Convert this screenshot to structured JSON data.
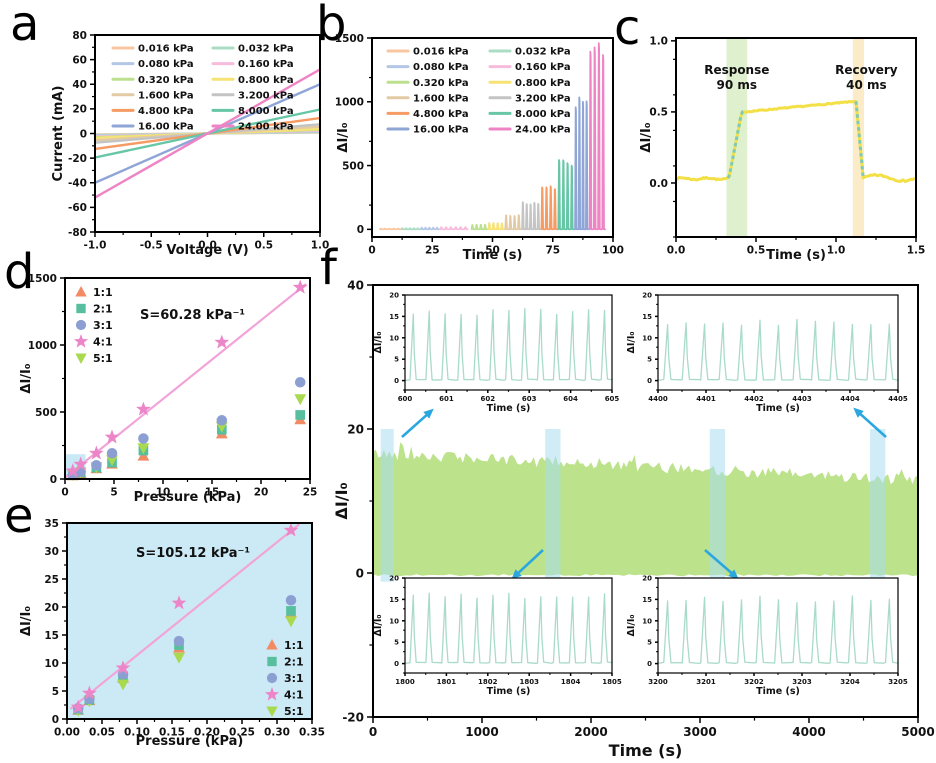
{
  "figure": {
    "background": "#ffffff"
  },
  "chart_data": [
    {
      "id": "a",
      "panel_label": "a",
      "type": "line",
      "xlabel": "Voltage (V)",
      "ylabel": "Current (mA)",
      "xlim": [
        -1,
        1
      ],
      "ylim": [
        -80,
        80
      ],
      "xticks": [
        -1,
        -0.5,
        0,
        0.5,
        1
      ],
      "xtick_labels": [
        "-1.0",
        "-0.5",
        "0.0",
        "0.5",
        "1.0"
      ],
      "yticks": [
        -80,
        -60,
        -40,
        -20,
        0,
        20,
        40,
        60,
        80
      ],
      "ytick_labels": [
        "-80",
        "-60",
        "-40",
        "-20",
        "0",
        "20",
        "40",
        "60",
        "80"
      ],
      "x_minor_step": 0.25,
      "y_minor_step": 10,
      "series": [
        {
          "name": "0.016 kPa",
          "color": "#F8C7A2",
          "slope_mA_per_V": 0.8
        },
        {
          "name": "0.032 kPa",
          "color": "#ABDCC4",
          "slope_mA_per_V": 1.2
        },
        {
          "name": "0.080 kPa",
          "color": "#B5C7E6",
          "slope_mA_per_V": 1.8
        },
        {
          "name": "0.160 kPa",
          "color": "#F7BCDC",
          "slope_mA_per_V": 2.3
        },
        {
          "name": "0.320 kPa",
          "color": "#BCE08E",
          "slope_mA_per_V": 3.0
        },
        {
          "name": "0.800 kPa",
          "color": "#F6E275",
          "slope_mA_per_V": 3.6
        },
        {
          "name": "1.600 kPa",
          "color": "#E2CBA4",
          "slope_mA_per_V": 5.5
        },
        {
          "name": "3.200 kPa",
          "color": "#C4C4C4",
          "slope_mA_per_V": 7.5
        },
        {
          "name": "4.800 kPa",
          "color": "#F59B63",
          "slope_mA_per_V": 12.5
        },
        {
          "name": "8.000 kPa",
          "color": "#66C6A5",
          "slope_mA_per_V": 19.5
        },
        {
          "name": "16.00 kPa",
          "color": "#8FA5D6",
          "slope_mA_per_V": 40
        },
        {
          "name": "24.00 kPa",
          "color": "#EE84C4",
          "slope_mA_per_V": 52
        }
      ],
      "legend": {
        "columns": 2,
        "position": "top-left"
      }
    },
    {
      "id": "b",
      "panel_label": "b",
      "type": "line",
      "xlabel": "Time (s)",
      "ylabel": "ΔI/I₀",
      "xlim": [
        0,
        100
      ],
      "ylim": [
        -60,
        1500
      ],
      "xticks": [
        0,
        25,
        50,
        75,
        100
      ],
      "xtick_labels": [
        "0",
        "25",
        "50",
        "75",
        "100"
      ],
      "yticks": [
        0,
        500,
        1000,
        1500
      ],
      "ytick_labels": [
        "0",
        "500",
        "1000",
        "1500"
      ],
      "x_minor_step": 12.5,
      "y_minor_step": 250,
      "pulse_groups": [
        {
          "name": "0.016 kPa",
          "color": "#F8C7A2",
          "t_start": 3,
          "t_end": 12,
          "amplitude": 6,
          "pulses": 5
        },
        {
          "name": "0.032 kPa",
          "color": "#ABDCC4",
          "t_start": 12,
          "t_end": 20,
          "amplitude": 9,
          "pulses": 5
        },
        {
          "name": "0.080 kPa",
          "color": "#B5C7E6",
          "t_start": 20,
          "t_end": 28,
          "amplitude": 13,
          "pulses": 5
        },
        {
          "name": "0.160 kPa",
          "color": "#F7BCDC",
          "t_start": 28,
          "t_end": 40,
          "amplitude": 17,
          "pulses": 6
        },
        {
          "name": "0.320 kPa",
          "color": "#BCE08E",
          "t_start": 41,
          "t_end": 48,
          "amplitude": 36,
          "pulses": 4
        },
        {
          "name": "0.800 kPa",
          "color": "#F6E275",
          "t_start": 48,
          "t_end": 55,
          "amplitude": 48,
          "pulses": 4
        },
        {
          "name": "1.600 kPa",
          "color": "#E2CBA4",
          "t_start": 55,
          "t_end": 62,
          "amplitude": 110,
          "pulses": 4
        },
        {
          "name": "3.200 kPa",
          "color": "#C4C4C4",
          "t_start": 62,
          "t_end": 70,
          "amplitude": 205,
          "pulses": 5
        },
        {
          "name": "4.800 kPa",
          "color": "#F59B63",
          "t_start": 70,
          "t_end": 77,
          "amplitude": 330,
          "pulses": 4
        },
        {
          "name": "8.000 kPa",
          "color": "#66C6A5",
          "t_start": 77,
          "t_end": 84,
          "amplitude": 530,
          "pulses": 4
        },
        {
          "name": "16.00 kPa",
          "color": "#8FA5D6",
          "t_start": 84,
          "t_end": 90,
          "amplitude": 1010,
          "pulses": 4
        },
        {
          "name": "24.00 kPa",
          "color": "#EE84C4",
          "t_start": 90,
          "t_end": 97,
          "amplitude": 1440,
          "pulses": 4
        }
      ],
      "legend": {
        "columns": 2,
        "position": "top-left"
      }
    },
    {
      "id": "c",
      "panel_label": "c",
      "type": "line",
      "xlabel": "Time (s)",
      "ylabel": "ΔI/I₀",
      "xlim": [
        0,
        1.5
      ],
      "ylim": [
        -0.38,
        1.02
      ],
      "xticks": [
        0,
        0.5,
        1,
        1.5
      ],
      "xtick_labels": [
        "0.0",
        "0.5",
        "1.0",
        "1.5"
      ],
      "yticks": [
        0,
        0.5,
        1
      ],
      "ytick_labels": [
        "0.0",
        "0.5",
        "1.0"
      ],
      "x_minor_step": 0.25,
      "y_minor_step": 0.25,
      "trace": {
        "color": "#F2E046",
        "dash_color": "#7ECBB5",
        "baseline": 0.03,
        "rise_start": 0.33,
        "rise_end": 0.425,
        "plateau_start_value": 0.5,
        "plateau_end_value": 0.575,
        "fall_start": 1.125,
        "fall_end": 1.17,
        "end_value": 0.035
      },
      "bands": [
        {
          "label": "Response",
          "value": "90 ms",
          "x_start": 0.315,
          "x_end": 0.445,
          "color": "#DFF0CE",
          "label_x": 0.38
        },
        {
          "label": "Recovery",
          "value": "40 ms",
          "x_start": 1.105,
          "x_end": 1.175,
          "color": "#FBEBC8",
          "label_x": 1.19
        }
      ]
    },
    {
      "id": "d",
      "panel_label": "d",
      "type": "scatter",
      "xlabel": "Pressure (kPa)",
      "ylabel": "ΔI/I₀",
      "xlim": [
        0,
        25
      ],
      "ylim": [
        0,
        1500
      ],
      "xticks": [
        0,
        5,
        10,
        15,
        20,
        25
      ],
      "xtick_labels": [
        "0",
        "5",
        "10",
        "15",
        "20",
        "25"
      ],
      "yticks": [
        0,
        500,
        1000,
        1500
      ],
      "ytick_labels": [
        "0",
        "500",
        "1000",
        "1500"
      ],
      "x_minor_step": 2.5,
      "y_minor_step": 250,
      "pressures": [
        0.8,
        1.6,
        3.2,
        4.8,
        8,
        16,
        24
      ],
      "series": [
        {
          "name": "1:1",
          "marker": "triangle-up",
          "color": "#F28B64",
          "values": [
            25,
            42,
            78,
            112,
            172,
            338,
            443
          ]
        },
        {
          "name": "2:1",
          "marker": "square",
          "color": "#57BF9E",
          "values": [
            28,
            48,
            85,
            122,
            212,
            368,
            478
          ]
        },
        {
          "name": "3:1",
          "marker": "circle",
          "color": "#8C9FD3",
          "values": [
            32,
            55,
            102,
            192,
            302,
            438,
            722
          ]
        },
        {
          "name": "4:1",
          "marker": "star",
          "color": "#EC86C8",
          "values": [
            60,
            110,
            192,
            312,
            520,
            1020,
            1430
          ]
        },
        {
          "name": "5:1",
          "marker": "triangle-down",
          "color": "#A9D94E",
          "values": [
            30,
            50,
            90,
            142,
            232,
            392,
            598
          ]
        }
      ],
      "fit": {
        "label": "S=60.28 kPa⁻¹",
        "color": "#F2A3D8",
        "x1": 0,
        "y1": 10,
        "x2": 24.6,
        "y2": 1455
      },
      "highlight_rect": {
        "x1": 0,
        "y1": 0,
        "x2": 2.1,
        "y2": 185,
        "color": "#C9E9F6"
      },
      "legend": {
        "position": "top-left"
      }
    },
    {
      "id": "e",
      "panel_label": "e",
      "type": "scatter",
      "xlabel": "Pressure (kPa)",
      "ylabel": "ΔI/I₀",
      "xlim": [
        0,
        0.35
      ],
      "ylim": [
        0,
        35
      ],
      "xticks": [
        0,
        0.05,
        0.1,
        0.15,
        0.2,
        0.25,
        0.3,
        0.35
      ],
      "xtick_labels": [
        "0.00",
        "0.05",
        "0.10",
        "0.15",
        "0.20",
        "0.25",
        "0.30",
        "0.35"
      ],
      "yticks": [
        0,
        5,
        10,
        15,
        20,
        25,
        30,
        35
      ],
      "ytick_labels": [
        "0",
        "5",
        "10",
        "15",
        "20",
        "25",
        "30",
        "35"
      ],
      "x_minor_step": 0.025,
      "y_minor_step": 2.5,
      "plot_bg": "#CBEAF6",
      "pressures": [
        0.016,
        0.032,
        0.08,
        0.16,
        0.32
      ],
      "series": [
        {
          "name": "1:1",
          "marker": "triangle-up",
          "color": "#F28B64",
          "values": [
            1.6,
            3.3,
            7.3,
            12.7,
            18.9
          ]
        },
        {
          "name": "2:1",
          "marker": "square",
          "color": "#57BF9E",
          "values": [
            1.7,
            3.4,
            7.6,
            13.2,
            19.3
          ]
        },
        {
          "name": "3:1",
          "marker": "circle",
          "color": "#8C9FD3",
          "values": [
            1.9,
            3.6,
            8.0,
            13.9,
            21.2
          ]
        },
        {
          "name": "4:1",
          "marker": "star",
          "color": "#EC86C8",
          "values": [
            2.1,
            4.6,
            9.1,
            20.7,
            33.7
          ]
        },
        {
          "name": "5:1",
          "marker": "triangle-down",
          "color": "#A9D94E",
          "values": [
            1.5,
            3.2,
            6.2,
            11.0,
            17.5
          ]
        }
      ],
      "fit": {
        "label": "S=105.12 kPa⁻¹",
        "color": "#F2A3D8",
        "x1": 0.005,
        "y1": 1.8,
        "x2": 0.332,
        "y2": 34.8
      },
      "legend": {
        "position": "bottom-right"
      }
    },
    {
      "id": "f",
      "panel_label": "f",
      "type": "area",
      "xlabel": "Time (s)",
      "ylabel": "ΔI/I₀",
      "xlim": [
        0,
        5000
      ],
      "ylim": [
        -20,
        40
      ],
      "xticks": [
        0,
        1000,
        2000,
        3000,
        4000,
        5000
      ],
      "xtick_labels": [
        "0",
        "1000",
        "2000",
        "3000",
        "4000",
        "5000"
      ],
      "yticks": [
        -20,
        0,
        20,
        40
      ],
      "ytick_labels": [
        "-20",
        "0",
        "20",
        "40"
      ],
      "x_minor_step": 500,
      "y_minor_step": 10,
      "trace": {
        "color": "#BCE28B",
        "amplitude_start": 16.6,
        "amplitude_end": 12.9
      },
      "highlight_bands": {
        "color": "#A8DCF0",
        "ranges": [
          [
            70,
            190
          ],
          [
            1580,
            1720
          ],
          [
            3090,
            3230
          ],
          [
            4560,
            4700
          ]
        ]
      },
      "arrow_color": "#2BA7E0",
      "insets": [
        {
          "corner": "top-left",
          "xlabel": "Time (s)",
          "ylabel": "ΔI/I₀",
          "x_start": 600,
          "x_end": 605,
          "xtick_labels": [
            "600",
            "601",
            "602",
            "603",
            "604",
            "605"
          ],
          "yticks": [
            0,
            5,
            10,
            15,
            20
          ],
          "ytick_labels": [
            "0",
            "5",
            "10",
            "15",
            "20"
          ],
          "peak": 16.3,
          "color": "#A9DBC8"
        },
        {
          "corner": "top-right",
          "xlabel": "Time (s)",
          "ylabel": "ΔI/I₀",
          "x_start": 4400,
          "x_end": 4405,
          "xtick_labels": [
            "4400",
            "4401",
            "4402",
            "4403",
            "4404",
            "4405"
          ],
          "yticks": [
            0,
            5,
            10,
            15,
            20
          ],
          "ytick_labels": [
            "0",
            "5",
            "10",
            "15",
            "20"
          ],
          "peak": 13.8,
          "color": "#A9DBC8"
        },
        {
          "corner": "bottom-left",
          "xlabel": "Time (s)",
          "ylabel": "ΔI/I₀",
          "x_start": 1800,
          "x_end": 1805,
          "xtick_labels": [
            "1800",
            "1801",
            "1802",
            "1803",
            "1804",
            "1805"
          ],
          "yticks": [
            0,
            5,
            10,
            15,
            20
          ],
          "ytick_labels": [
            "0",
            "5",
            "10",
            "15",
            "20"
          ],
          "peak": 15.8,
          "color": "#A9DBC8"
        },
        {
          "corner": "bottom-right",
          "xlabel": "Time (s)",
          "ylabel": "ΔI/I₀",
          "x_start": 3200,
          "x_end": 3205,
          "xtick_labels": [
            "3200",
            "3201",
            "3202",
            "3203",
            "3204",
            "3205"
          ],
          "yticks": [
            0,
            5,
            10,
            15,
            20
          ],
          "ytick_labels": [
            "0",
            "5",
            "10",
            "15",
            "20"
          ],
          "peak": 15.2,
          "color": "#A9DBC8"
        }
      ]
    }
  ]
}
